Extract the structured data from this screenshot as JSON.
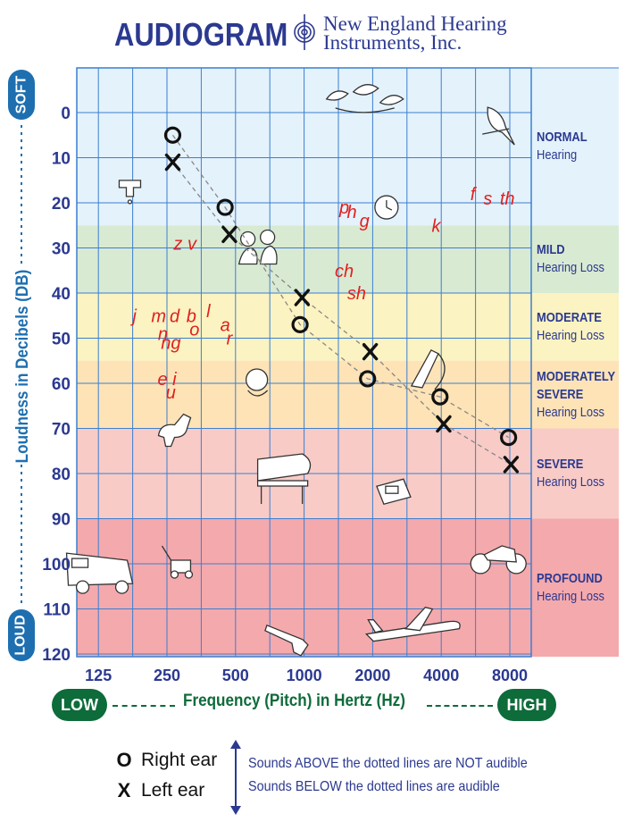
{
  "header": {
    "title": "AUDIOGRAM",
    "company_line1": "New England Hearing",
    "company_line2": "Instruments, Inc."
  },
  "bands": [
    {
      "top": "NORMAL",
      "bottom": "Hearing",
      "from_db": -10,
      "to_db": 25,
      "color": "#e4f2fb"
    },
    {
      "top": "MILD",
      "bottom": "Hearing Loss",
      "from_db": 25,
      "to_db": 40,
      "color": "#d9ead3"
    },
    {
      "top": "MODERATE",
      "bottom": "Hearing Loss",
      "from_db": 40,
      "to_db": 55,
      "color": "#fbf3c1"
    },
    {
      "top": "MODERATELY SEVERE",
      "bottom": "Hearing Loss",
      "lines": [
        "MODERATELY",
        "SEVERE",
        "Hearing Loss"
      ],
      "from_db": 55,
      "to_db": 70,
      "color": "#fde3b6"
    },
    {
      "top": "SEVERE",
      "bottom": "Hearing Loss",
      "from_db": 70,
      "to_db": 90,
      "color": "#f8cbc6"
    },
    {
      "top": "PROFOUND",
      "bottom": "Hearing Loss",
      "from_db": 90,
      "to_db": 120,
      "color": "#f4a9ad"
    }
  ],
  "axis": {
    "y_title": "Loudness in Decibels (DB)",
    "y_top_label": "SOFT",
    "y_bottom_label": "LOUD",
    "x_title": "Frequency (Pitch) in Hertz (Hz)",
    "x_left_label": "LOW",
    "x_right_label": "HIGH"
  },
  "chart_data": {
    "type": "scatter",
    "x_scale": "log2",
    "y_inverted": true,
    "ylim": [
      -10,
      120
    ],
    "xlabel": "Frequency (Pitch) in Hertz (Hz)",
    "ylabel": "Loudness in Decibels (DB)",
    "x_ticks": [
      {
        "label": "125",
        "value": 125
      },
      {
        "label": "250",
        "value": 250
      },
      {
        "label": "500",
        "value": 500
      },
      {
        "label": "1000",
        "value": 1000
      },
      {
        "label": "2000",
        "value": 2000
      },
      {
        "label": "4000",
        "value": 4000
      },
      {
        "label": "8000",
        "value": 8000
      }
    ],
    "y_ticks": [
      0,
      10,
      20,
      30,
      40,
      50,
      60,
      70,
      80,
      90,
      100,
      110,
      120
    ],
    "series": [
      {
        "name": "Right ear",
        "marker": "O",
        "points": [
          [
            265,
            5
          ],
          [
            450,
            21
          ],
          [
            960,
            47
          ],
          [
            1900,
            59
          ],
          [
            3950,
            63
          ],
          [
            7900,
            72
          ]
        ]
      },
      {
        "name": "Left ear",
        "marker": "X",
        "points": [
          [
            265,
            11
          ],
          [
            470,
            27
          ],
          [
            980,
            41
          ],
          [
            1950,
            53
          ],
          [
            4100,
            69
          ],
          [
            8100,
            78
          ]
        ]
      }
    ],
    "speech_sounds": [
      {
        "text": "z v",
        "x": 300,
        "y": 29
      },
      {
        "text": "j",
        "x": 180,
        "y": 45
      },
      {
        "text": "m",
        "x": 230,
        "y": 45
      },
      {
        "text": "d",
        "x": 270,
        "y": 45
      },
      {
        "text": "b",
        "x": 320,
        "y": 45
      },
      {
        "text": "l",
        "x": 380,
        "y": 44
      },
      {
        "text": "o",
        "x": 330,
        "y": 48
      },
      {
        "text": "a",
        "x": 450,
        "y": 47
      },
      {
        "text": "r",
        "x": 470,
        "y": 50
      },
      {
        "text": "n",
        "x": 240,
        "y": 49
      },
      {
        "text": "ng",
        "x": 260,
        "y": 51
      },
      {
        "text": "e i",
        "x": 250,
        "y": 59
      },
      {
        "text": "u",
        "x": 260,
        "y": 62
      },
      {
        "text": "p",
        "x": 1500,
        "y": 21
      },
      {
        "text": "h",
        "x": 1620,
        "y": 22
      },
      {
        "text": "g",
        "x": 1840,
        "y": 24
      },
      {
        "text": "ch",
        "x": 1500,
        "y": 35
      },
      {
        "text": "sh",
        "x": 1700,
        "y": 40
      },
      {
        "text": "k",
        "x": 3800,
        "y": 25
      },
      {
        "text": "f",
        "x": 5500,
        "y": 18
      },
      {
        "text": "s",
        "x": 6400,
        "y": 19
      },
      {
        "text": "th",
        "x": 7800,
        "y": 19
      }
    ],
    "illustrations": [
      {
        "name": "rustling-leaves-icon",
        "x": 1800,
        "y": -3
      },
      {
        "name": "bird-icon",
        "x": 7000,
        "y": 2
      },
      {
        "name": "dripping-faucet-icon",
        "x": 175,
        "y": 17
      },
      {
        "name": "clock-icon",
        "x": 2300,
        "y": 21
      },
      {
        "name": "people-talking-icon",
        "x": 620,
        "y": 30
      },
      {
        "name": "crying-baby-icon",
        "x": 620,
        "y": 60
      },
      {
        "name": "vacuum-cleaner-icon",
        "x": 3300,
        "y": 57
      },
      {
        "name": "barking-dog-icon",
        "x": 270,
        "y": 70
      },
      {
        "name": "piano-icon",
        "x": 820,
        "y": 80
      },
      {
        "name": "telephone-icon",
        "x": 2450,
        "y": 84
      },
      {
        "name": "truck-icon",
        "x": 130,
        "y": 102
      },
      {
        "name": "lawn-mower-icon",
        "x": 290,
        "y": 100
      },
      {
        "name": "motorcycle-icon",
        "x": 7000,
        "y": 98
      },
      {
        "name": "gun-icon",
        "x": 900,
        "y": 116
      },
      {
        "name": "airplane-icon",
        "x": 3000,
        "y": 114
      }
    ]
  },
  "legend": [
    {
      "symbol": "O",
      "label": "Right ear"
    },
    {
      "symbol": "X",
      "label": "Left ear"
    }
  ],
  "notes": {
    "above": "Sounds ABOVE the dotted lines are NOT audible",
    "below": "Sounds BELOW the dotted lines are audible"
  },
  "colors": {
    "brand_blue": "#2b3990",
    "axis_blue": "#1e6fb0",
    "grid_blue": "#3b7fd0",
    "marker": "#111111",
    "speech_red": "#e02020",
    "green": "#0e6b3a"
  }
}
